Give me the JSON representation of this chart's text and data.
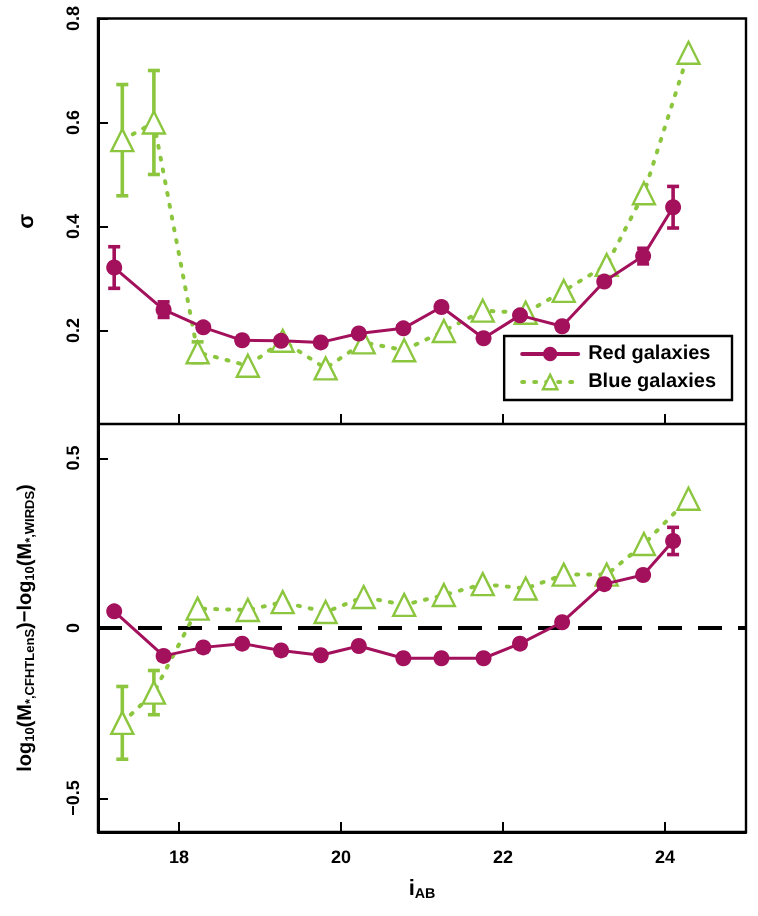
{
  "chart_data": [
    {
      "type": "line",
      "ylabel": "σ",
      "xlim": [
        17,
        25
      ],
      "xticks": [
        18,
        20,
        22,
        24
      ],
      "ylim": [
        0.02,
        0.8
      ],
      "yticks": [
        0.2,
        0.4,
        0.6,
        0.8
      ],
      "tick_labels": "y",
      "grid": false,
      "legend": "bottom right",
      "x": [
        17.2,
        17.81,
        18.3,
        18.78,
        19.26,
        19.75,
        20.22,
        20.77,
        21.24,
        21.76,
        22.21,
        22.73,
        23.25,
        23.73,
        24.1
      ],
      "series": [
        {
          "name": "Red galaxies",
          "color": "#a3105c",
          "marker": "circle",
          "line_style": "solid",
          "values": [
            0.321,
            0.24,
            0.206,
            0.181,
            0.18,
            0.177,
            0.194,
            0.204,
            0.245,
            0.185,
            0.229,
            0.208,
            0.294,
            0.343,
            0.437
          ],
          "errors": [
            0.04,
            0.015,
            null,
            null,
            null,
            null,
            null,
            null,
            null,
            null,
            null,
            null,
            null,
            0.015,
            0.04
          ]
        },
        {
          "name": "Blue galaxies",
          "color": "#8cc63f",
          "marker": "triangle",
          "line_style": "dotted",
          "x": [
            17.3,
            17.69,
            18.23,
            18.85,
            19.28,
            19.81,
            20.28,
            20.78,
            21.27,
            21.75,
            22.28,
            22.75,
            23.28,
            23.74,
            24.29
          ],
          "values": [
            0.566,
            0.6,
            0.158,
            0.132,
            0.18,
            0.127,
            0.177,
            0.162,
            0.199,
            0.238,
            0.234,
            0.276,
            0.326,
            0.464,
            0.734
          ],
          "errors": [
            0.107,
            0.1,
            0.02,
            null,
            null,
            null,
            null,
            null,
            null,
            null,
            null,
            null,
            null,
            null,
            null
          ]
        }
      ]
    },
    {
      "type": "line",
      "ylabel": "log$_{10}$(M$_{*,CFHTLenS}$)−log$_{10}$(M$_{*,WIRDS}$)",
      "xlabel": "i$_{AB}$",
      "xlim": [
        17,
        25
      ],
      "xticks": [
        18,
        20,
        22,
        24
      ],
      "ylim": [
        -0.6,
        0.6
      ],
      "yticks": [
        -0.5,
        0,
        0.5
      ],
      "grid": false,
      "ref_lines": [
        {
          "axis": "y",
          "value": 0,
          "color": "#000000",
          "line_style": "dashed"
        }
      ],
      "x": [
        17.2,
        17.81,
        18.3,
        18.78,
        19.26,
        19.75,
        20.22,
        20.77,
        21.24,
        21.76,
        22.21,
        22.73,
        23.25,
        23.73,
        24.1
      ],
      "series": [
        {
          "color": "#a3105c",
          "marker": "circle",
          "line_style": "solid",
          "values": [
            0.049,
            -0.082,
            -0.057,
            -0.046,
            -0.066,
            -0.08,
            -0.053,
            -0.089,
            -0.089,
            -0.089,
            -0.046,
            0.017,
            0.129,
            0.156,
            0.256
          ],
          "errors": [
            null,
            null,
            null,
            null,
            null,
            null,
            null,
            null,
            null,
            null,
            null,
            null,
            null,
            null,
            0.04
          ]
        },
        {
          "color": "#8cc63f",
          "marker": "triangle",
          "line_style": "dotted",
          "x": [
            17.3,
            17.69,
            18.23,
            18.85,
            19.28,
            19.81,
            20.28,
            20.78,
            21.27,
            21.75,
            22.28,
            22.75,
            23.28,
            23.74,
            24.29
          ],
          "values": [
            -0.279,
            -0.19,
            0.057,
            0.053,
            0.076,
            0.047,
            0.091,
            0.068,
            0.097,
            0.129,
            0.116,
            0.157,
            0.157,
            0.247,
            0.38
          ],
          "errors": [
            0.107,
            0.065,
            null,
            null,
            null,
            null,
            null,
            null,
            null,
            null,
            null,
            null,
            null,
            null,
            null
          ]
        }
      ]
    }
  ]
}
